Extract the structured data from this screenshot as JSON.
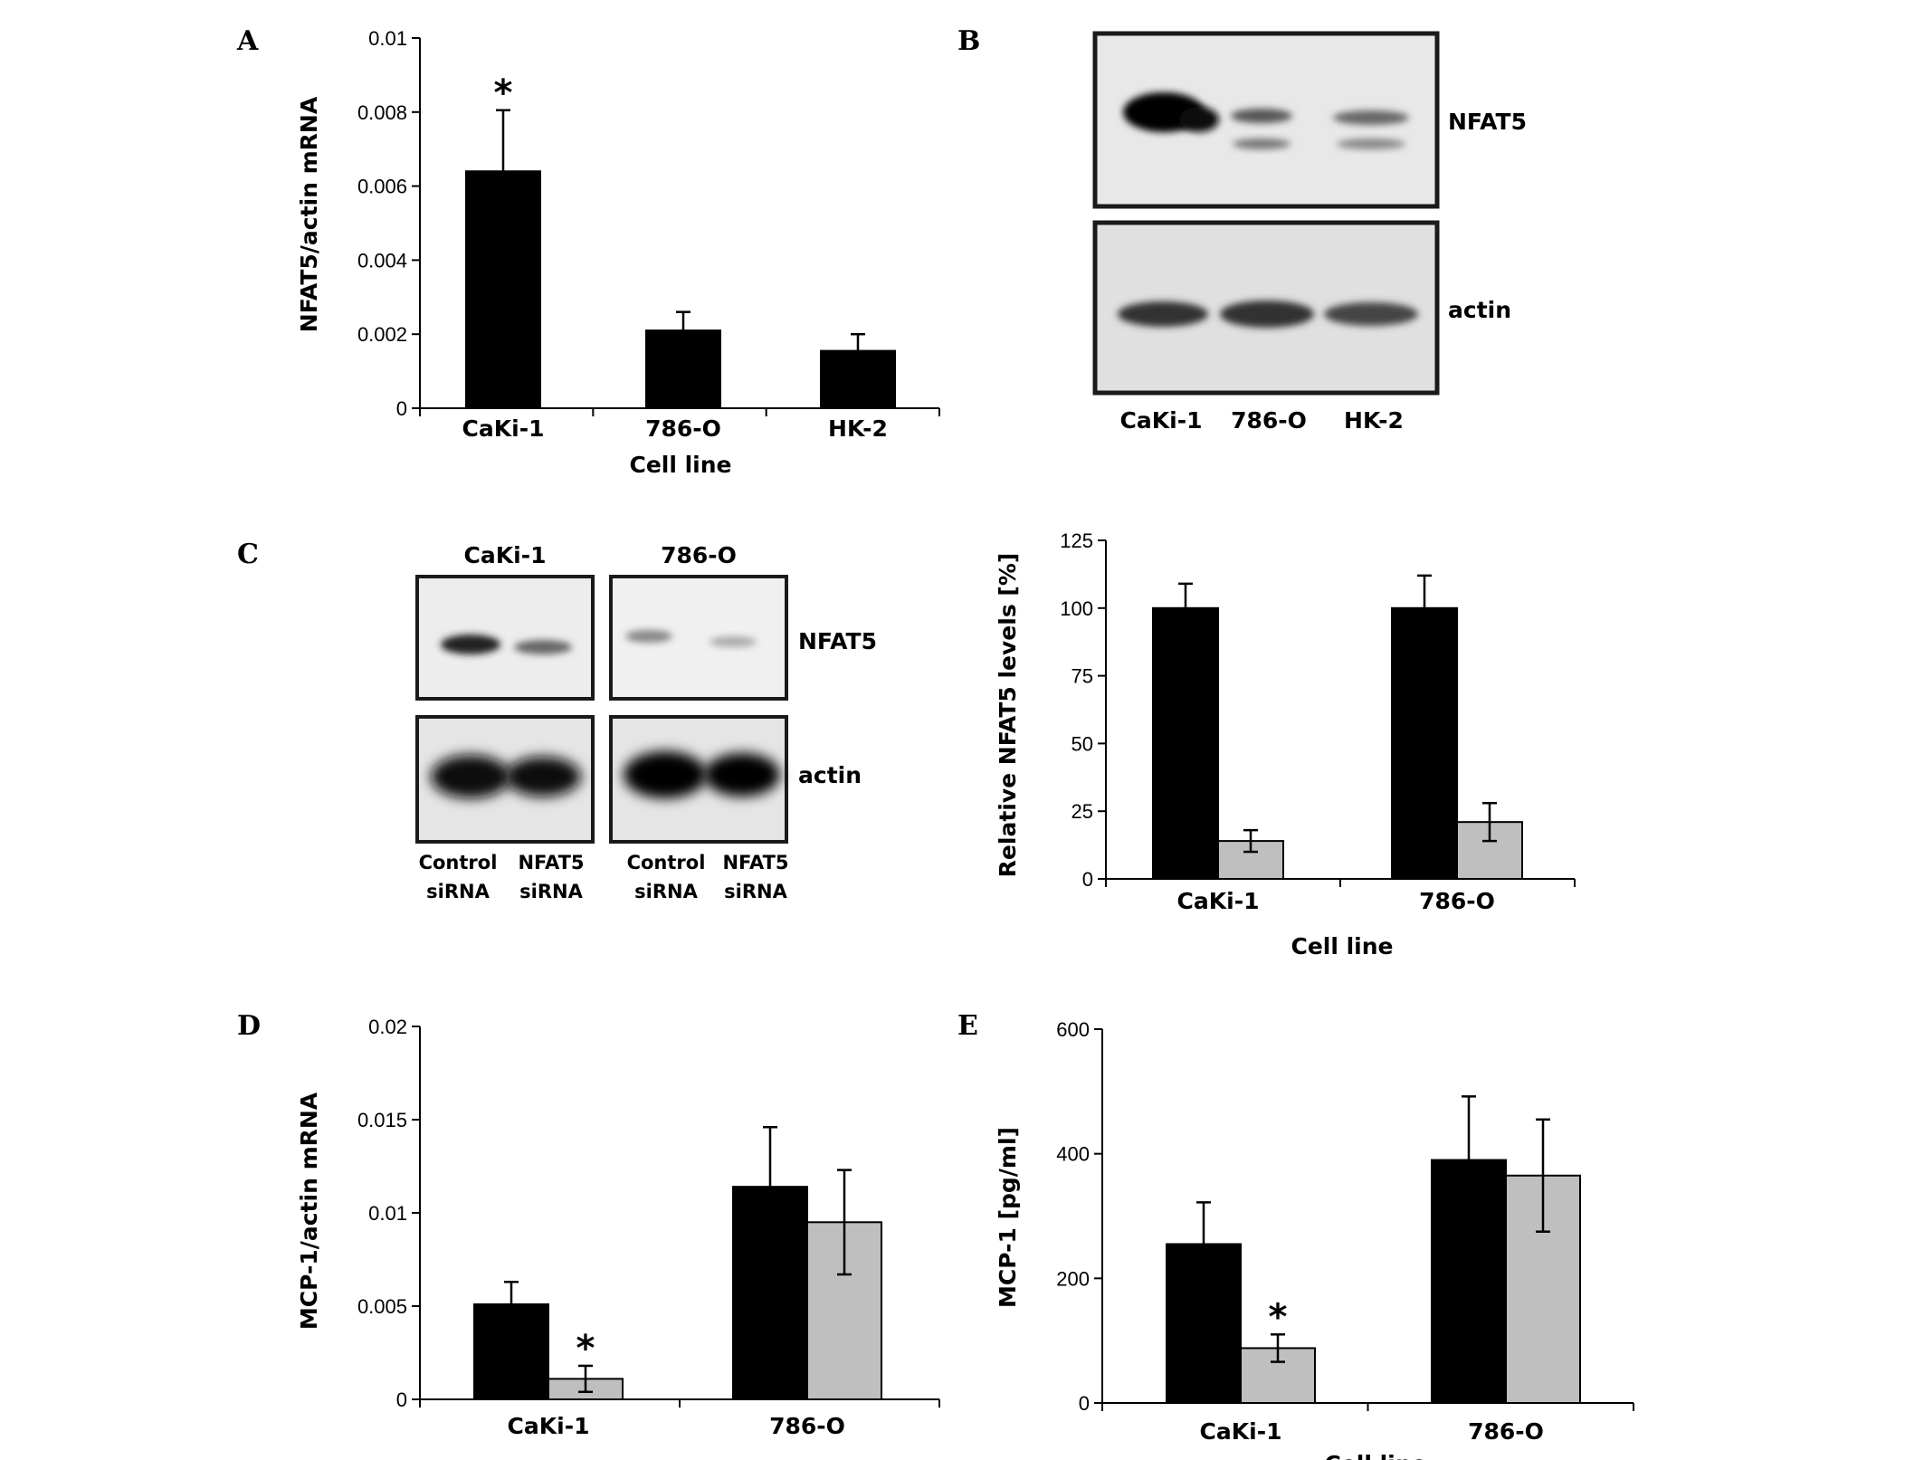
{
  "panels": {
    "A": "A",
    "B": "B",
    "C": "C",
    "D": "D",
    "E": "E"
  },
  "chart_data": [
    {
      "id": "A",
      "type": "bar",
      "ylabel": "NFAT5/actin mRNA",
      "xlabel": "Cell line",
      "categories": [
        "CaKi-1",
        "786-O",
        "HK-2"
      ],
      "ylim": [
        0,
        0.01
      ],
      "yticks": [
        "0",
        "0.002",
        "0.004",
        "0.006",
        "0.008",
        "0.01"
      ],
      "series": [
        {
          "color": "#000000",
          "values": [
            0.0064,
            0.0021,
            0.00155
          ],
          "errors": [
            0.00165,
            0.0005,
            0.00045
          ],
          "annotations": [
            "*",
            "",
            ""
          ]
        }
      ]
    },
    {
      "id": "C-right",
      "type": "bar",
      "ylabel": "Relative NFAT5 levels  [%]",
      "xlabel": "Cell line",
      "categories": [
        "CaKi-1",
        "786-O"
      ],
      "ylim": [
        0,
        125
      ],
      "yticks": [
        "0",
        "25",
        "50",
        "75",
        "100",
        "125"
      ],
      "series": [
        {
          "color": "#000000",
          "values": [
            100,
            100
          ],
          "errors": [
            9,
            12
          ],
          "annotations": [
            "",
            ""
          ]
        },
        {
          "color": "#bfbfbf",
          "values": [
            14,
            21
          ],
          "errors": [
            4,
            7
          ],
          "annotations": [
            "",
            ""
          ]
        }
      ]
    },
    {
      "id": "D",
      "type": "bar",
      "ylabel": "MCP-1/actin mRNA",
      "xlabel": "",
      "categories": [
        "CaKi-1",
        "786-O"
      ],
      "ylim": [
        0,
        0.02
      ],
      "yticks": [
        "0",
        "0.005",
        "0.01",
        "0.015",
        "0.02"
      ],
      "series": [
        {
          "color": "#000000",
          "values": [
            0.0051,
            0.0114
          ],
          "errors": [
            0.0012,
            0.0032
          ],
          "annotations": [
            "",
            ""
          ]
        },
        {
          "color": "#bfbfbf",
          "values": [
            0.0011,
            0.0095
          ],
          "errors": [
            0.0007,
            0.0028
          ],
          "annotations": [
            "*",
            ""
          ]
        }
      ]
    },
    {
      "id": "E",
      "type": "bar",
      "ylabel": "MCP-1 [pg/ml]",
      "xlabel": "Cell line",
      "categories": [
        "CaKi-1",
        "786-O"
      ],
      "ylim": [
        0,
        600
      ],
      "yticks": [
        "0",
        "200",
        "400",
        "600"
      ],
      "series": [
        {
          "color": "#000000",
          "values": [
            255,
            390
          ],
          "errors": [
            67,
            102
          ],
          "annotations": [
            "",
            ""
          ]
        },
        {
          "color": "#bfbfbf",
          "values": [
            88,
            365
          ],
          "errors": [
            22,
            90
          ],
          "annotations": [
            "*",
            ""
          ]
        }
      ]
    }
  ],
  "blot_B": {
    "bands": [
      "NFAT5",
      "actin"
    ],
    "lanes": [
      "CaKi-1",
      "786-O",
      "HK-2"
    ]
  },
  "blot_C": {
    "groups": [
      "CaKi-1",
      "786-O"
    ],
    "bands": [
      "NFAT5",
      "actin"
    ],
    "lane_top": [
      "Control",
      "NFAT5",
      "Control",
      "NFAT5"
    ],
    "lane_bottom": [
      "siRNA",
      "siRNA",
      "siRNA",
      "siRNA"
    ]
  }
}
